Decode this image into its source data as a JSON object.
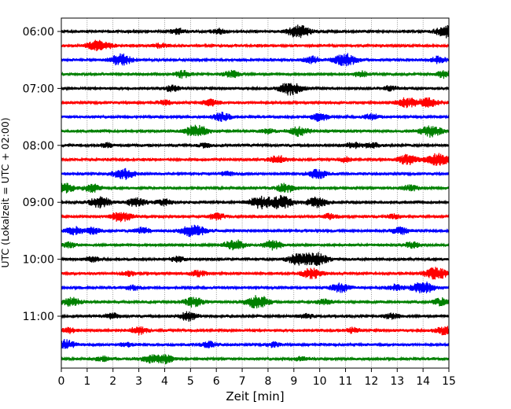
{
  "chart_data": {
    "type": "line",
    "title": "",
    "xlabel": "Zeit  [min]",
    "ylabel": "UTC (Lokalzeit = UTC + 02:00)",
    "xlim": [
      0,
      15
    ],
    "xticks": [
      0,
      1,
      2,
      3,
      4,
      5,
      6,
      7,
      8,
      9,
      10,
      11,
      12,
      13,
      14,
      15
    ],
    "xtick_labels": [
      "0",
      "1",
      "2",
      "3",
      "4",
      "5",
      "6",
      "7",
      "8",
      "9",
      "10",
      "11",
      "12",
      "13",
      "14",
      "15"
    ],
    "ytick_labels": [
      "06:00",
      "07:00",
      "08:00",
      "09:00",
      "10:00",
      "11:00"
    ],
    "ytick_traces": [
      0,
      4,
      8,
      12,
      16,
      20
    ],
    "trace_interval_min": 15,
    "trace_count": 24,
    "color_cycle": [
      "#000000",
      "#ff0000",
      "#0000ff",
      "#008000"
    ],
    "grid": "vertical dotted at each minute",
    "series": [
      {
        "start": "06:00",
        "events": [
          [
            9.2,
            1.0
          ],
          [
            4.5,
            0.4
          ],
          [
            6.1,
            0.4
          ],
          [
            14.9,
            0.9
          ]
        ]
      },
      {
        "start": "06:15",
        "events": [
          [
            1.6,
            0.7
          ],
          [
            1.2,
            0.45
          ],
          [
            3.8,
            0.35
          ]
        ]
      },
      {
        "start": "06:30",
        "events": [
          [
            2.3,
            0.9
          ],
          [
            11.0,
            1.0
          ],
          [
            9.7,
            0.5
          ],
          [
            14.6,
            0.5
          ]
        ]
      },
      {
        "start": "06:45",
        "events": [
          [
            4.7,
            0.5
          ],
          [
            6.6,
            0.5
          ],
          [
            11.6,
            0.45
          ],
          [
            14.8,
            0.55
          ]
        ]
      },
      {
        "start": "07:00",
        "events": [
          [
            8.9,
            1.0
          ],
          [
            4.3,
            0.45
          ],
          [
            12.7,
            0.35
          ]
        ]
      },
      {
        "start": "07:15",
        "events": [
          [
            5.8,
            0.5
          ],
          [
            13.4,
            0.8
          ],
          [
            14.2,
            0.7
          ],
          [
            4.0,
            0.35
          ]
        ]
      },
      {
        "start": "07:30",
        "events": [
          [
            6.2,
            0.65
          ],
          [
            10.0,
            0.6
          ],
          [
            12.0,
            0.4
          ]
        ]
      },
      {
        "start": "07:45",
        "events": [
          [
            5.2,
            1.0
          ],
          [
            9.2,
            0.7
          ],
          [
            14.3,
            0.9
          ],
          [
            8.0,
            0.35
          ]
        ]
      },
      {
        "start": "08:00",
        "events": [
          [
            11.3,
            0.45
          ],
          [
            12.0,
            0.4
          ],
          [
            5.6,
            0.35
          ],
          [
            1.8,
            0.35
          ]
        ]
      },
      {
        "start": "08:15",
        "events": [
          [
            8.4,
            0.6
          ],
          [
            13.4,
            0.8
          ],
          [
            14.6,
            1.0
          ],
          [
            11.0,
            0.35
          ]
        ]
      },
      {
        "start": "08:30",
        "events": [
          [
            2.4,
            0.85
          ],
          [
            9.9,
            0.7
          ],
          [
            6.4,
            0.35
          ]
        ]
      },
      {
        "start": "08:45",
        "events": [
          [
            0.1,
            0.8
          ],
          [
            1.2,
            0.6
          ],
          [
            8.7,
            0.7
          ],
          [
            13.5,
            0.45
          ]
        ]
      },
      {
        "start": "09:00",
        "events": [
          [
            1.5,
            0.85
          ],
          [
            2.9,
            0.7
          ],
          [
            7.7,
            0.9
          ],
          [
            8.5,
            1.0
          ],
          [
            9.9,
            0.8
          ],
          [
            4.0,
            0.5
          ]
        ]
      },
      {
        "start": "09:15",
        "events": [
          [
            2.3,
            0.85
          ],
          [
            6.0,
            0.5
          ],
          [
            10.4,
            0.4
          ],
          [
            12.9,
            0.35
          ]
        ]
      },
      {
        "start": "09:30",
        "events": [
          [
            5.1,
            1.0
          ],
          [
            0.5,
            0.55
          ],
          [
            1.2,
            0.5
          ],
          [
            3.1,
            0.5
          ],
          [
            13.1,
            0.55
          ]
        ]
      },
      {
        "start": "09:45",
        "events": [
          [
            6.7,
            0.8
          ],
          [
            8.2,
            0.7
          ],
          [
            13.6,
            0.45
          ],
          [
            0.3,
            0.35
          ]
        ]
      },
      {
        "start": "10:00",
        "events": [
          [
            9.2,
            0.9
          ],
          [
            9.9,
            0.95
          ],
          [
            4.5,
            0.4
          ],
          [
            1.2,
            0.35
          ]
        ]
      },
      {
        "start": "10:15",
        "events": [
          [
            9.7,
            0.8
          ],
          [
            14.5,
            1.0
          ],
          [
            2.6,
            0.4
          ],
          [
            5.3,
            0.45
          ]
        ]
      },
      {
        "start": "10:30",
        "events": [
          [
            10.8,
            0.7
          ],
          [
            14.0,
            1.0
          ],
          [
            12.9,
            0.45
          ],
          [
            2.8,
            0.35
          ]
        ]
      },
      {
        "start": "10:45",
        "events": [
          [
            7.6,
            1.0
          ],
          [
            5.1,
            0.7
          ],
          [
            0.4,
            0.65
          ],
          [
            14.7,
            0.55
          ],
          [
            10.2,
            0.45
          ]
        ]
      },
      {
        "start": "11:00",
        "events": [
          [
            4.9,
            0.7
          ],
          [
            2.0,
            0.45
          ],
          [
            9.5,
            0.35
          ],
          [
            12.8,
            0.4
          ]
        ]
      },
      {
        "start": "11:15",
        "events": [
          [
            3.0,
            0.6
          ],
          [
            14.8,
            0.6
          ],
          [
            11.3,
            0.4
          ],
          [
            0.3,
            0.4
          ]
        ]
      },
      {
        "start": "11:30",
        "events": [
          [
            0.2,
            0.7
          ],
          [
            5.7,
            0.45
          ],
          [
            8.2,
            0.35
          ],
          [
            2.5,
            0.3
          ]
        ]
      },
      {
        "start": "11:45",
        "events": [
          [
            3.4,
            0.55
          ],
          [
            4.0,
            0.65
          ],
          [
            1.6,
            0.35
          ],
          [
            9.3,
            0.3
          ]
        ]
      }
    ]
  }
}
